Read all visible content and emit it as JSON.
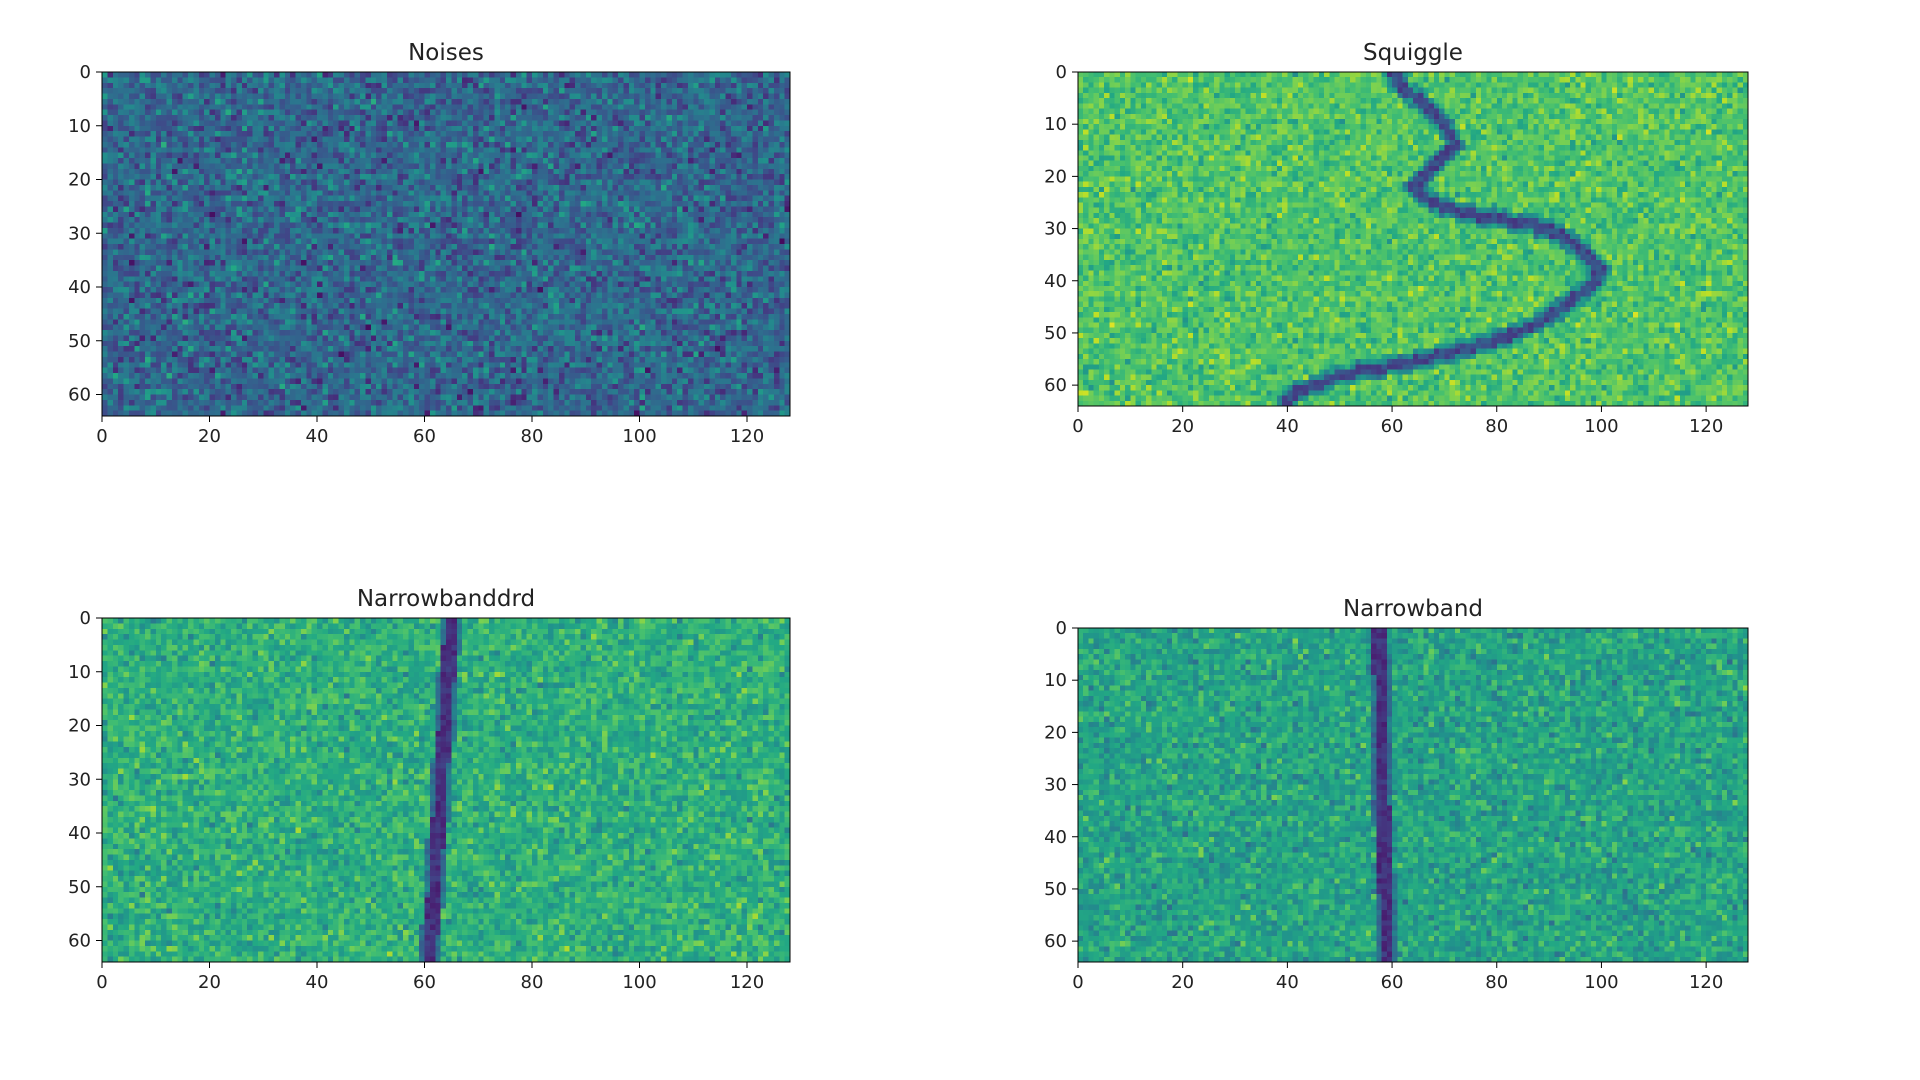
{
  "figure": {
    "chart_data": [
      {
        "type": "heatmap",
        "title": "Noises",
        "xlabel": "",
        "ylabel": "",
        "xlim": [
          0,
          128
        ],
        "ylim": [
          64,
          0
        ],
        "xticks": [
          "0",
          "20",
          "40",
          "60",
          "80",
          "100",
          "120"
        ],
        "yticks": [
          "0",
          "10",
          "20",
          "30",
          "40",
          "50",
          "60"
        ],
        "grid": false,
        "colormap": "viridis",
        "signal": null,
        "noise": {
          "center": 0.33,
          "spread": 0.22
        }
      },
      {
        "type": "heatmap",
        "title": "Squiggle",
        "xlabel": "",
        "ylabel": "",
        "xlim": [
          0,
          128
        ],
        "ylim": [
          64,
          0
        ],
        "xticks": [
          "0",
          "20",
          "40",
          "60",
          "80",
          "100",
          "120"
        ],
        "yticks": [
          "0",
          "10",
          "20",
          "30",
          "40",
          "50",
          "60"
        ],
        "grid": false,
        "colormap": "viridis",
        "signal": {
          "kind": "squiggle",
          "path_x": [
            60,
            62,
            66,
            70,
            72,
            68,
            64,
            66,
            70,
            74,
            78,
            86,
            92,
            96,
            100,
            98,
            94,
            90,
            84,
            78,
            70,
            62,
            56,
            50,
            46,
            42,
            40
          ],
          "path_y": [
            0,
            3,
            6,
            10,
            14,
            18,
            22,
            24,
            26,
            27,
            28,
            29,
            31,
            34,
            38,
            41,
            44,
            47,
            50,
            52,
            54,
            56,
            57,
            58,
            60,
            61,
            63
          ],
          "level": 0.15
        },
        "noise": {
          "center": 0.72,
          "spread": 0.16
        }
      },
      {
        "type": "heatmap",
        "title": "Narrowbanddrd",
        "xlabel": "",
        "ylabel": "",
        "xlim": [
          0,
          128
        ],
        "ylim": [
          64,
          0
        ],
        "xticks": [
          "0",
          "20",
          "40",
          "60",
          "80",
          "100",
          "120"
        ],
        "yticks": [
          "0",
          "10",
          "20",
          "30",
          "40",
          "50",
          "60"
        ],
        "grid": false,
        "colormap": "viridis",
        "signal": {
          "kind": "line",
          "x_at_top": 65,
          "x_at_bottom": 61,
          "level": 0.08
        },
        "noise": {
          "center": 0.63,
          "spread": 0.17
        }
      },
      {
        "type": "heatmap",
        "title": "Narrowband",
        "xlabel": "",
        "ylabel": "",
        "xlim": [
          0,
          128
        ],
        "ylim": [
          64,
          0
        ],
        "xticks": [
          "0",
          "20",
          "40",
          "60",
          "80",
          "100",
          "120"
        ],
        "yticks": [
          "0",
          "10",
          "20",
          "30",
          "40",
          "50",
          "60"
        ],
        "grid": false,
        "colormap": "viridis",
        "signal": {
          "kind": "line",
          "x_at_top": 57.5,
          "x_at_bottom": 59,
          "level": 0.08
        },
        "noise": {
          "center": 0.58,
          "spread": 0.17
        }
      }
    ]
  }
}
